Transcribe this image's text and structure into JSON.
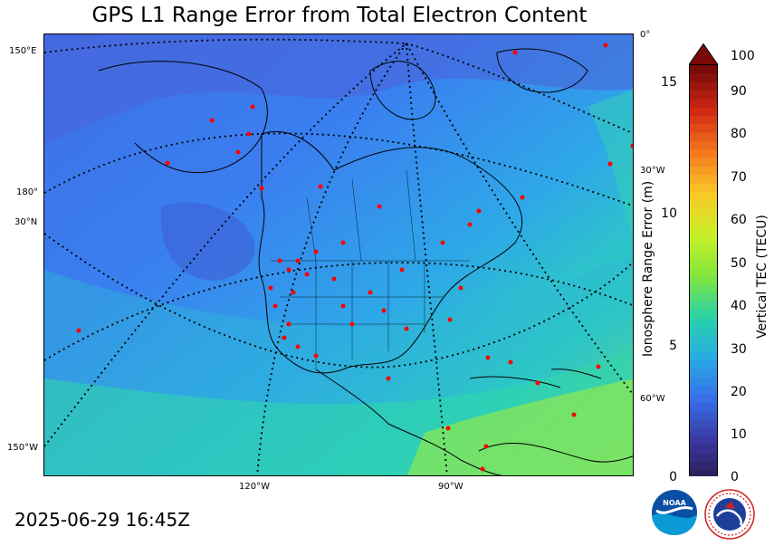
{
  "title": "GPS L1 Range Error from Total Electron Content",
  "timestamp": "2025-06-29 16:45Z",
  "map": {
    "edge_labels": {
      "lon_150e": "150°E",
      "lon_180": "180°",
      "lat_30n": "30°N",
      "lon_150w": "150°W",
      "lon_0": "0°",
      "lon_30w": "30°W",
      "lon_60w": "60°W",
      "lon_120w": "120°W",
      "lon_90w": "90°W"
    },
    "stations_color": "#ff0000"
  },
  "colorbar": {
    "left_axis_title": "Ionosphere Range Error (m)",
    "right_axis_title": "Vertical TEC (TECU)",
    "left_ticks": [
      "0",
      "5",
      "10",
      "15"
    ],
    "right_ticks": [
      "0",
      "10",
      "20",
      "30",
      "40",
      "50",
      "60",
      "70",
      "80",
      "90",
      "100"
    ]
  },
  "logos": {
    "noaa": "NOAA",
    "nws": "NATIONAL WEATHER SERVICE"
  }
}
